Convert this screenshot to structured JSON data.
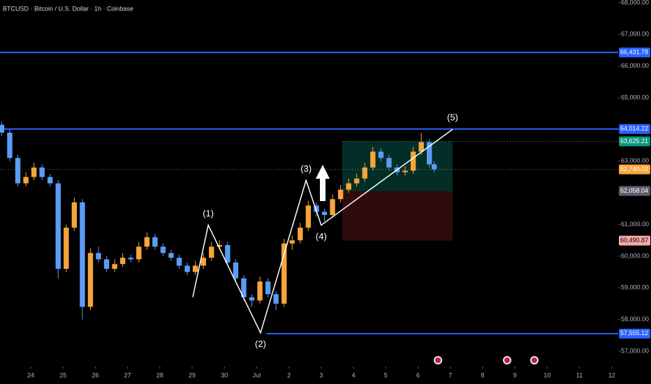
{
  "chart_data": {
    "type": "candlestick",
    "title": "BTCUSD · Bitcoin / U.S. Dollar · 1h · Coinbase",
    "up_color": "#f7a53b",
    "down_color": "#5b9cf6",
    "x": [
      -0.9,
      -0.65,
      -0.4,
      -0.15,
      0.1,
      0.35,
      0.6,
      0.85,
      1.1,
      1.35,
      1.6,
      1.85,
      2.1,
      2.35,
      2.6,
      2.85,
      3.1,
      3.35,
      3.6,
      3.85,
      4.1,
      4.35,
      4.6,
      4.85,
      5.1,
      5.35,
      5.6,
      5.85,
      6.1,
      6.35,
      6.6,
      6.85,
      7.1,
      7.35,
      7.6,
      7.85,
      8.1,
      8.35,
      8.6,
      8.85,
      9.1,
      9.35,
      9.6,
      9.85,
      10.1,
      10.35,
      10.6,
      10.85,
      11.1,
      11.35,
      11.6,
      11.85,
      12.1,
      12.35,
      12.5
    ],
    "open": [
      64150,
      63900,
      63100,
      62300,
      62500,
      62800,
      62500,
      62300,
      59600,
      60900,
      61700,
      58400,
      60100,
      59900,
      59600,
      59750,
      59950,
      59900,
      60300,
      60600,
      60300,
      60100,
      59950,
      59700,
      59500,
      59700,
      59950,
      60300,
      60350,
      59800,
      59300,
      58700,
      58600,
      59200,
      58800,
      58500,
      60400,
      60500,
      60900,
      61600,
      61400,
      61300,
      61800,
      62100,
      62300,
      62450,
      62800,
      63300,
      63100,
      62800,
      62650,
      62700,
      63300,
      63600,
      62900
    ],
    "high": [
      64250,
      64000,
      63200,
      62650,
      62950,
      62900,
      62600,
      62400,
      61000,
      61850,
      61800,
      60250,
      60300,
      60000,
      59900,
      60100,
      60050,
      60450,
      60750,
      60700,
      60400,
      60200,
      60050,
      59800,
      59850,
      60100,
      60450,
      60500,
      60450,
      59900,
      59400,
      58800,
      59350,
      59300,
      58900,
      60550,
      60650,
      61050,
      61750,
      61700,
      61500,
      61950,
      62250,
      62450,
      62600,
      62950,
      63450,
      63400,
      63200,
      62900,
      62850,
      63450,
      63900,
      63700,
      63000
    ],
    "low": [
      63800,
      63000,
      62200,
      62200,
      62400,
      62400,
      62200,
      59300,
      59500,
      60800,
      58000,
      58300,
      59800,
      59500,
      59500,
      59650,
      59800,
      59800,
      60200,
      60200,
      60000,
      59850,
      59600,
      59400,
      59400,
      59600,
      59850,
      60200,
      59700,
      59200,
      58600,
      58400,
      58500,
      58700,
      58300,
      58400,
      60200,
      60400,
      60800,
      61250,
      61100,
      61200,
      61700,
      62000,
      62200,
      62350,
      62700,
      63000,
      62700,
      62550,
      62550,
      62600,
      63200,
      62800,
      62650
    ],
    "close": [
      63900,
      63100,
      62300,
      62500,
      62800,
      62500,
      62300,
      59600,
      60900,
      61700,
      58400,
      60100,
      59900,
      59600,
      59750,
      59950,
      59900,
      60300,
      60600,
      60300,
      60100,
      59950,
      59700,
      59500,
      59700,
      59950,
      60300,
      60350,
      59800,
      59300,
      58700,
      58600,
      59200,
      58800,
      58500,
      60400,
      60500,
      60900,
      61600,
      61400,
      61300,
      61800,
      62100,
      62300,
      62450,
      62800,
      63300,
      63100,
      62800,
      62650,
      62700,
      63300,
      63600,
      62900,
      62740
    ],
    "xlim": [
      -0.952,
      18.2
    ],
    "ylim": [
      56515,
      68088
    ],
    "xticks": [
      {
        "value": 0,
        "label": "24"
      },
      {
        "value": 1,
        "label": "25"
      },
      {
        "value": 2,
        "label": "26"
      },
      {
        "value": 3,
        "label": "27"
      },
      {
        "value": 4,
        "label": "28"
      },
      {
        "value": 5,
        "label": "29"
      },
      {
        "value": 6,
        "label": "30"
      },
      {
        "value": 7,
        "label": "Jul"
      },
      {
        "value": 8,
        "label": "2"
      },
      {
        "value": 9,
        "label": "3"
      },
      {
        "value": 10,
        "label": "4"
      },
      {
        "value": 11,
        "label": "5"
      },
      {
        "value": 12,
        "label": "6"
      },
      {
        "value": 13,
        "label": "7"
      },
      {
        "value": 14,
        "label": "8"
      },
      {
        "value": 15,
        "label": "9"
      },
      {
        "value": 16,
        "label": "10"
      },
      {
        "value": 17,
        "label": "11"
      },
      {
        "value": 18,
        "label": "12"
      }
    ],
    "yticks": [
      {
        "value": 57000,
        "label": "57,000.00"
      },
      {
        "value": 58000,
        "label": "58,000.00"
      },
      {
        "value": 59000,
        "label": "59,000.00"
      },
      {
        "value": 60000,
        "label": "60,000.00"
      },
      {
        "value": 61000,
        "label": "61,000.00"
      },
      {
        "value": 62000,
        "label": "62,000.00"
      },
      {
        "value": 63000,
        "label": "63,000.00"
      },
      {
        "value": 64000,
        "label": "64,000.00"
      },
      {
        "value": 65000,
        "label": "65,000.00"
      },
      {
        "value": 66000,
        "label": "66,000.00"
      },
      {
        "value": 67000,
        "label": "67,000.00"
      },
      {
        "value": 68000,
        "label": "68,000.00"
      }
    ],
    "price_labels": [
      {
        "value": 66431.78,
        "label": "66,431.78",
        "color": "#2962ff",
        "role": "level"
      },
      {
        "value": 64014.22,
        "label": "64,014.22",
        "color": "#2962ff",
        "role": "level"
      },
      {
        "value": 63625.21,
        "label": "63,625.21",
        "color": "#089981",
        "role": "target"
      },
      {
        "value": 62740.02,
        "label": "62,740.02",
        "color": "#f7a53b",
        "role": "last"
      },
      {
        "value": 62058.04,
        "label": "62,058.04",
        "color": "#5d606b",
        "role": "entry"
      },
      {
        "value": 60490.87,
        "label": "60,490.87",
        "color": "#f7a9a9",
        "role": "stop"
      },
      {
        "value": 57555.12,
        "label": "57,555.12",
        "color": "#2962ff",
        "role": "level",
        "from_x": 7.3
      }
    ],
    "position": {
      "from": 9.65,
      "to": 13.07
    },
    "waves": {
      "color": "#ffffff",
      "x": [
        5.02,
        5.5,
        7.12,
        8.53,
        9.0,
        13.07
      ],
      "price": [
        58706,
        60980,
        57580,
        62393,
        60980,
        64004
      ],
      "labels": [
        null,
        "(1)",
        "(2)",
        "(3)",
        "(4)",
        "(5)"
      ]
    }
  }
}
